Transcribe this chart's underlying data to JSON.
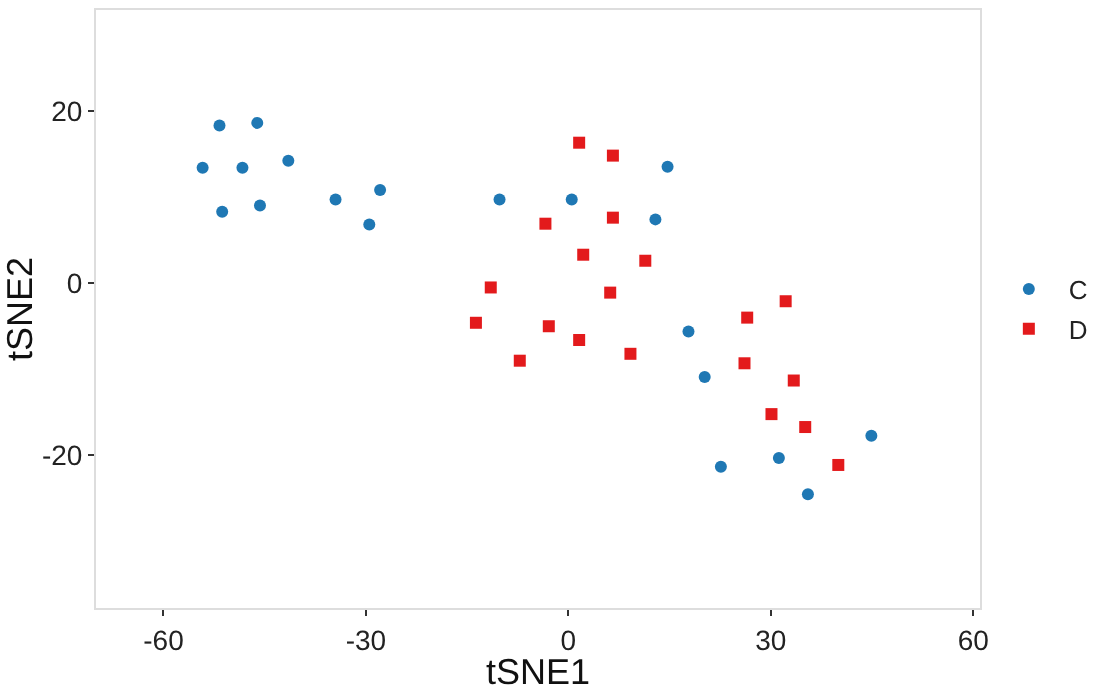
{
  "chart_data": {
    "type": "scatter",
    "xlabel": "tSNE1",
    "ylabel": "tSNE2",
    "xlim": [
      -70,
      61
    ],
    "ylim": [
      -37.7,
      31.7
    ],
    "xticks": [
      -60,
      -30,
      0,
      30,
      60
    ],
    "yticks": [
      -20,
      0,
      20
    ],
    "grid": false,
    "legend": "right",
    "series": [
      {
        "name": "C",
        "color": "#1f78b4",
        "marker": "circle",
        "x": [
          -51.7,
          -46.1,
          -54.2,
          -48.3,
          -41.5,
          -51.3,
          -45.7,
          -34.5,
          -27.9,
          -29.5,
          -10.2,
          14.7,
          0.5,
          12.9,
          17.8,
          20.2,
          44.9,
          22.6,
          31.2,
          35.5
        ],
        "values": [
          18.3,
          18.6,
          13.4,
          13.4,
          14.2,
          8.3,
          9.0,
          9.7,
          10.8,
          6.8,
          9.7,
          13.5,
          9.7,
          7.4,
          -5.6,
          -10.9,
          -17.7,
          -21.3,
          -20.3,
          -24.5
        ]
      },
      {
        "name": "D",
        "color": "#e31a1c",
        "marker": "square",
        "x": [
          -11.5,
          1.6,
          6.6,
          -3.4,
          6.6,
          2.2,
          11.4,
          6.2,
          32.2,
          -13.7,
          -2.9,
          1.6,
          -7.2,
          9.2,
          26.5,
          26.1,
          33.4,
          30.1,
          35.1,
          40.0
        ],
        "values": [
          -0.5,
          16.3,
          14.8,
          6.9,
          7.6,
          3.3,
          2.6,
          -1.1,
          -2.1,
          -4.6,
          -5.0,
          -6.6,
          -9.0,
          -8.2,
          -4.0,
          -9.3,
          -11.3,
          -15.2,
          -16.7,
          -21.1
        ]
      }
    ]
  }
}
